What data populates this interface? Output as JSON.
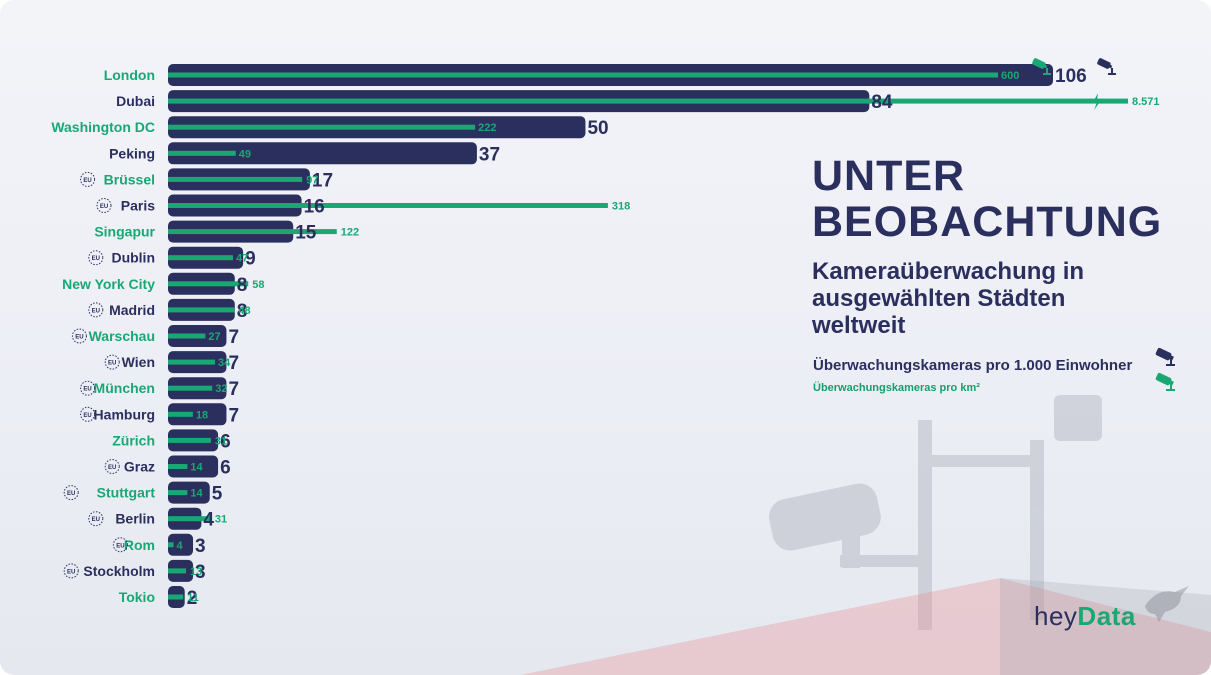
{
  "header": {
    "title_line1": "UNTER",
    "title_line2": "BEOBACHTUNG",
    "subtitle": "Kameraüberwachung in ausgewählten Städten weltweit"
  },
  "legend": {
    "per_inhabitants": "Überwachungskameras pro 1.000 Einwohner",
    "per_km2": "Überwachungskameras pro km²",
    "camera_icon": "camera-icon"
  },
  "logo": {
    "left": "hey",
    "accent": "Data"
  },
  "colors": {
    "navy": "#2b2f5e",
    "green": "#19a874",
    "background": "#eef0f6"
  },
  "chart_data": {
    "type": "bar",
    "orientation": "horizontal",
    "categories": [
      "London",
      "Dubai",
      "Washington DC",
      "Peking",
      "Brüssel",
      "Paris",
      "Singapur",
      "Dublin",
      "New York City",
      "Madrid",
      "Warschau",
      "Wien",
      "München",
      "Hamburg",
      "Zürich",
      "Graz",
      "Stuttgart",
      "Berlin",
      "Rom",
      "Stockholm",
      "Tokio"
    ],
    "eu_marked": [
      false,
      false,
      false,
      false,
      true,
      true,
      false,
      true,
      false,
      true,
      true,
      true,
      true,
      true,
      false,
      true,
      true,
      true,
      true,
      true,
      false
    ],
    "label_green": [
      true,
      false,
      true,
      false,
      true,
      false,
      true,
      false,
      true,
      false,
      true,
      false,
      true,
      false,
      true,
      false,
      true,
      false,
      true,
      false,
      true
    ],
    "series": [
      {
        "name": "Überwachungskameras pro 1.000 Einwohner",
        "color": "#2b2f5e",
        "values": [
          106,
          84,
          50,
          37,
          17,
          16,
          15,
          9,
          8,
          8,
          7,
          7,
          7,
          7,
          6,
          6,
          5,
          4,
          3,
          3,
          2
        ]
      },
      {
        "name": "Überwachungskameras pro km²",
        "color": "#19a874",
        "values": [
          600,
          8571,
          222,
          49,
          97,
          318,
          122,
          47,
          58,
          48,
          27,
          34,
          32,
          18,
          31,
          14,
          14,
          31,
          4,
          13,
          11
        ],
        "value_labels": [
          "600",
          "8.571",
          "222",
          "49",
          "97",
          "318",
          "122",
          "47",
          "58",
          "48",
          "27",
          "34",
          "32",
          "18",
          "31",
          "14",
          "14",
          "31",
          "4",
          "13",
          "11"
        ]
      }
    ],
    "eu_badge": "EU"
  }
}
